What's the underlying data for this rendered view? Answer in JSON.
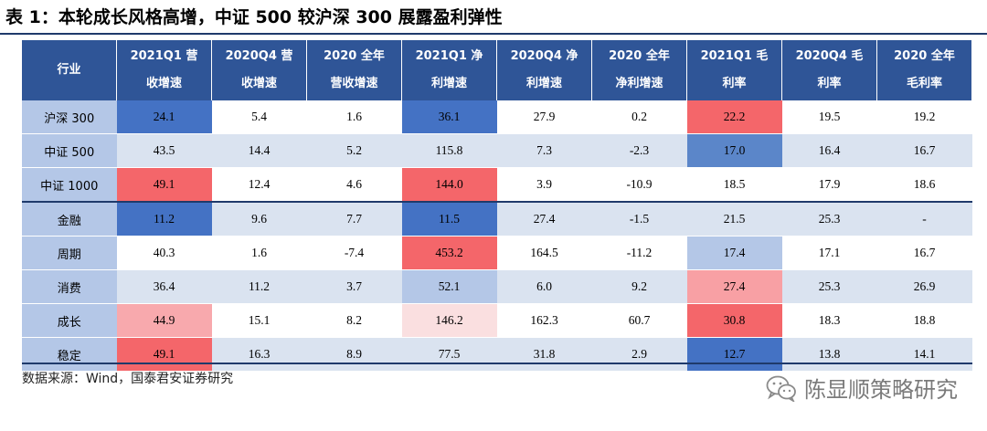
{
  "title": "表 1：本轮成长风格高增，中证 500 较沪深 300 展露盈利弹性",
  "headers": [
    [
      "行业"
    ],
    [
      "2021Q1 营",
      "收增速"
    ],
    [
      "2020Q4 营",
      "收增速"
    ],
    [
      "2020 全年",
      "营收增速"
    ],
    [
      "2021Q1 净",
      "利增速"
    ],
    [
      "2020Q4 净",
      "利增速"
    ],
    [
      "2020 全年",
      "净利增速"
    ],
    [
      "2021Q1 毛",
      "利率"
    ],
    [
      "2020Q4 毛",
      "利率"
    ],
    [
      "2020 全年",
      "毛利率"
    ]
  ],
  "rows": [
    {
      "label": "沪深 300",
      "cells": [
        "24.1",
        "5.4",
        "1.6",
        "36.1",
        "27.9",
        "0.2",
        "22.2",
        "19.5",
        "19.2"
      ],
      "colors": [
        "#4472c4",
        "",
        "",
        "#4472c4",
        "",
        "",
        "#f4666a",
        "",
        ""
      ]
    },
    {
      "label": "中证 500",
      "cells": [
        "43.5",
        "14.4",
        "5.2",
        "115.8",
        "7.3",
        "-2.3",
        "17.0",
        "16.4",
        "16.7"
      ],
      "colors": [
        "",
        "",
        "",
        "",
        "",
        "",
        "#5b86c9",
        "",
        ""
      ]
    },
    {
      "label": "中证 1000",
      "cells": [
        "49.1",
        "12.4",
        "4.6",
        "144.0",
        "3.9",
        "-10.9",
        "18.5",
        "17.9",
        "18.6"
      ],
      "colors": [
        "#f4666a",
        "",
        "",
        "#f4666a",
        "",
        "",
        "",
        "",
        ""
      ]
    },
    {
      "label": "金融",
      "cells": [
        "11.2",
        "9.6",
        "7.7",
        "11.5",
        "27.4",
        "-1.5",
        "21.5",
        "25.3",
        "-"
      ],
      "colors": [
        "#4472c4",
        "",
        "",
        "#4472c4",
        "",
        "",
        "",
        "",
        ""
      ]
    },
    {
      "label": "周期",
      "cells": [
        "40.3",
        "1.6",
        "-7.4",
        "453.2",
        "164.5",
        "-11.2",
        "17.4",
        "17.1",
        "16.7"
      ],
      "colors": [
        "",
        "",
        "",
        "#f4666a",
        "",
        "",
        "#b4c7e7",
        "",
        ""
      ]
    },
    {
      "label": "消费",
      "cells": [
        "36.4",
        "11.2",
        "3.7",
        "52.1",
        "6.0",
        "9.2",
        "27.4",
        "25.3",
        "26.9"
      ],
      "colors": [
        "",
        "",
        "",
        "#b4c7e7",
        "",
        "",
        "#f8a0a4",
        "",
        ""
      ]
    },
    {
      "label": "成长",
      "cells": [
        "44.9",
        "15.1",
        "8.2",
        "146.2",
        "162.3",
        "60.7",
        "30.8",
        "18.3",
        "18.8"
      ],
      "colors": [
        "#f8a9ad",
        "",
        "",
        "#fadfe0",
        "",
        "",
        "#f4666a",
        "",
        ""
      ]
    },
    {
      "label": "稳定",
      "cells": [
        "49.1",
        "16.3",
        "8.9",
        "77.5",
        "31.8",
        "2.9",
        "12.7",
        "13.8",
        "14.1"
      ],
      "colors": [
        "#f4666a",
        "",
        "",
        "",
        "",
        "",
        "#4472c4",
        "",
        ""
      ]
    }
  ],
  "source": "数据来源：Wind，国泰君安证券研究",
  "watermark": "陈显顺策略研究",
  "watermark_icon": "wechat-icon"
}
